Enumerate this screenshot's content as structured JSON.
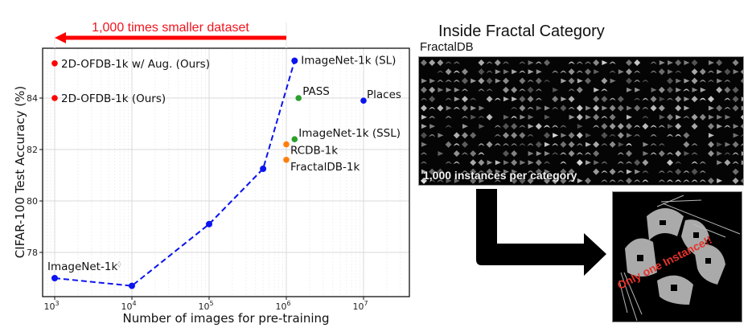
{
  "chart_data": {
    "type": "scatter",
    "title": "",
    "xlabel": "Number of images for pre-training",
    "ylabel": "CIFAR-100 Test Accuracy (%)",
    "xscale": "log",
    "xlim": [
      700,
      45000000
    ],
    "ylim": [
      76.5,
      85.9
    ],
    "x_ticks": [
      {
        "value": 1000,
        "label_base": "10",
        "label_exp": "3"
      },
      {
        "value": 10000,
        "label_base": "10",
        "label_exp": "4"
      },
      {
        "value": 100000,
        "label_base": "10",
        "label_exp": "5"
      },
      {
        "value": 1000000,
        "label_base": "10",
        "label_exp": "6"
      },
      {
        "value": 10000000,
        "label_base": "10",
        "label_exp": "7"
      }
    ],
    "y_ticks": [
      78,
      80,
      82,
      84
    ],
    "grid": true,
    "series": [
      {
        "name": "ImageNet-1k subsets (SL)",
        "style": "dashed-line-with-markers",
        "color": "#0a14f0",
        "points": [
          {
            "x": 1000,
            "y": 77.0
          },
          {
            "x": 10000,
            "y": 76.7
          },
          {
            "x": 100000,
            "y": 79.1
          },
          {
            "x": 500000,
            "y": 81.25
          },
          {
            "x": 1280000,
            "y": 85.45
          }
        ]
      }
    ],
    "points": [
      {
        "label": "2D-OFDB-1k w/ Aug. (Ours)",
        "x": 1000,
        "y": 85.35,
        "color": "#ff0000"
      },
      {
        "label": "2D-OFDB-1k (Ours)",
        "x": 1000,
        "y": 84.0,
        "color": "#ff0000"
      },
      {
        "label": "ImageNet-1k (SL)",
        "x": 1280000,
        "y": 85.45,
        "color": "#0a14f0"
      },
      {
        "label": "PASS",
        "x": 1440000,
        "y": 84.0,
        "color": "#2ca02c"
      },
      {
        "label": "Places",
        "x": 10000000,
        "y": 83.9,
        "color": "#0a14f0"
      },
      {
        "label": "ImageNet-1k (SSL)",
        "x": 1280000,
        "y": 82.4,
        "color": "#2ca02c"
      },
      {
        "label": "RCDB-1k",
        "x": 1000000,
        "y": 82.2,
        "color": "#ff7f0e"
      },
      {
        "label": "FractalDB-1k",
        "x": 1000000,
        "y": 81.6,
        "color": "#ff7f0e"
      }
    ],
    "annotations": [
      {
        "text": "ImageNet-1k",
        "superscript": "◊",
        "near": {
          "x": 1000,
          "y": 77.0
        }
      },
      {
        "text": "1,000 times smaller dataset",
        "type": "arrow",
        "from_x": 1000000,
        "to_x": 1000,
        "color": "#ff0000"
      }
    ],
    "legend": "none (inline point labels)"
  },
  "plot": {
    "xlabel": "Number of images for pre-training",
    "ylabel": "CIFAR-100 Test Accuracy (%)",
    "arrow_text": "1,000 times smaller dataset",
    "imagenet_subset_label": "ImageNet-1k",
    "imagenet_subset_mark": "◊"
  },
  "right_panel": {
    "title": "Inside Fractal Category",
    "subtitle": "FractalDB",
    "mosaic_caption": "1,000 instances per category",
    "instance_caption": "Only one Instance!!",
    "arrow_icon": "bent-arrow-down-right"
  }
}
